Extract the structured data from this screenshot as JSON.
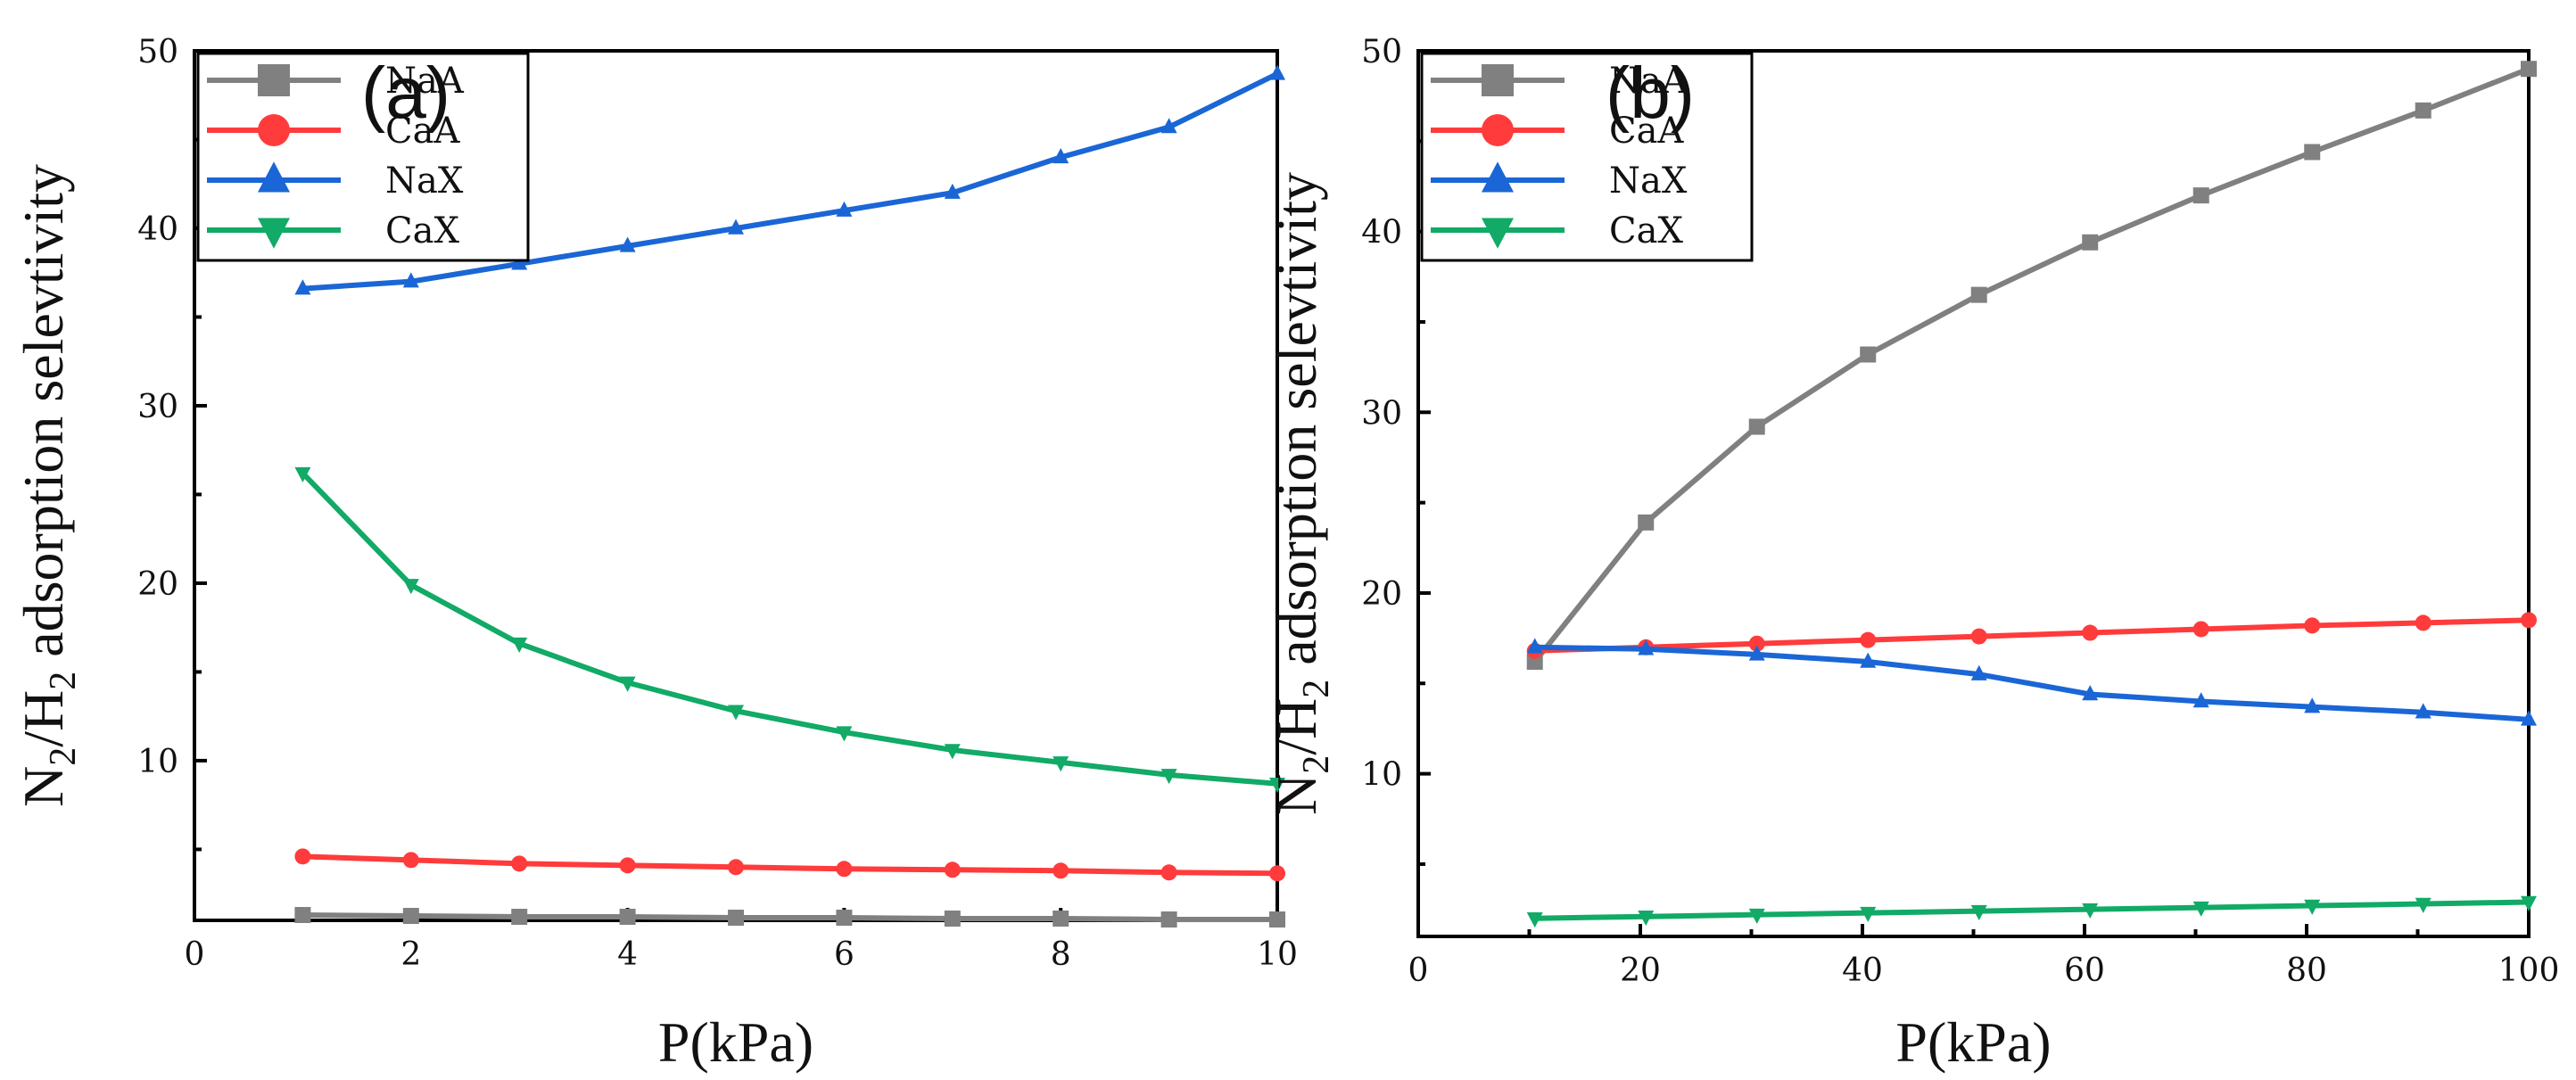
{
  "chart_data": [
    {
      "type": "line",
      "panel_label": "(a)",
      "xlabel": "P(kPa)",
      "ylabel": {
        "main": "N",
        "sub1": "2",
        "mid": "/H",
        "sub2": "2",
        "rest": " adsorption selevtivity"
      },
      "xlim": [
        0,
        10
      ],
      "ylim": [
        1,
        50
      ],
      "xticks": [
        0,
        2,
        4,
        6,
        8,
        10
      ],
      "yticks": [
        10,
        20,
        30,
        40,
        50
      ],
      "grid": false,
      "legend_position": "top-left",
      "x": [
        1,
        2,
        3,
        4,
        5,
        6,
        7,
        8,
        9,
        10
      ],
      "series": [
        {
          "name": "NaA",
          "color": "#808080",
          "marker": "square",
          "values": [
            1.3,
            1.25,
            1.2,
            1.2,
            1.15,
            1.15,
            1.1,
            1.1,
            1.05,
            1.05
          ]
        },
        {
          "name": "CaA",
          "color": "#ff3b3b",
          "marker": "circle",
          "values": [
            4.6,
            4.4,
            4.2,
            4.1,
            4.0,
            3.9,
            3.85,
            3.8,
            3.7,
            3.65
          ]
        },
        {
          "name": "NaX",
          "color": "#1a66d6",
          "marker": "triangle-up",
          "values": [
            36.6,
            37.0,
            38.0,
            39.0,
            40.0,
            41.0,
            42.0,
            44.0,
            45.7,
            48.7
          ]
        },
        {
          "name": "CaX",
          "color": "#11aa66",
          "marker": "triangle-down",
          "values": [
            26.2,
            19.9,
            16.6,
            14.4,
            12.8,
            11.6,
            10.6,
            9.9,
            9.2,
            8.7
          ]
        }
      ]
    },
    {
      "type": "line",
      "panel_label": "(b)",
      "xlabel": "P(kPa)",
      "ylabel": {
        "main": "N",
        "sub1": "2",
        "mid": "/H",
        "sub2": "2",
        "rest": " adsorption selevtivity"
      },
      "xlim": [
        0,
        100
      ],
      "ylim": [
        1,
        50
      ],
      "xticks": [
        0,
        20,
        40,
        60,
        80,
        100
      ],
      "yticks": [
        10,
        20,
        30,
        40,
        50
      ],
      "grid": false,
      "legend_position": "top-left",
      "x": [
        10.5,
        20.5,
        30.5,
        40.5,
        50.5,
        60.5,
        70.5,
        80.5,
        90.5,
        100
      ],
      "series": [
        {
          "name": "NaA",
          "color": "#808080",
          "marker": "square",
          "values": [
            16.2,
            23.9,
            29.2,
            33.2,
            36.5,
            39.4,
            42.0,
            44.4,
            46.7,
            49.0
          ]
        },
        {
          "name": "CaA",
          "color": "#ff3b3b",
          "marker": "circle",
          "values": [
            16.8,
            17.0,
            17.2,
            17.4,
            17.6,
            17.8,
            18.0,
            18.2,
            18.35,
            18.5
          ]
        },
        {
          "name": "NaX",
          "color": "#1a66d6",
          "marker": "triangle-up",
          "values": [
            17.0,
            16.9,
            16.6,
            16.2,
            15.5,
            14.4,
            14.0,
            13.7,
            13.4,
            13.0
          ]
        },
        {
          "name": "CaX",
          "color": "#11aa66",
          "marker": "triangle-down",
          "values": [
            2.0,
            2.1,
            2.2,
            2.3,
            2.4,
            2.5,
            2.6,
            2.7,
            2.8,
            2.9
          ]
        }
      ]
    }
  ]
}
